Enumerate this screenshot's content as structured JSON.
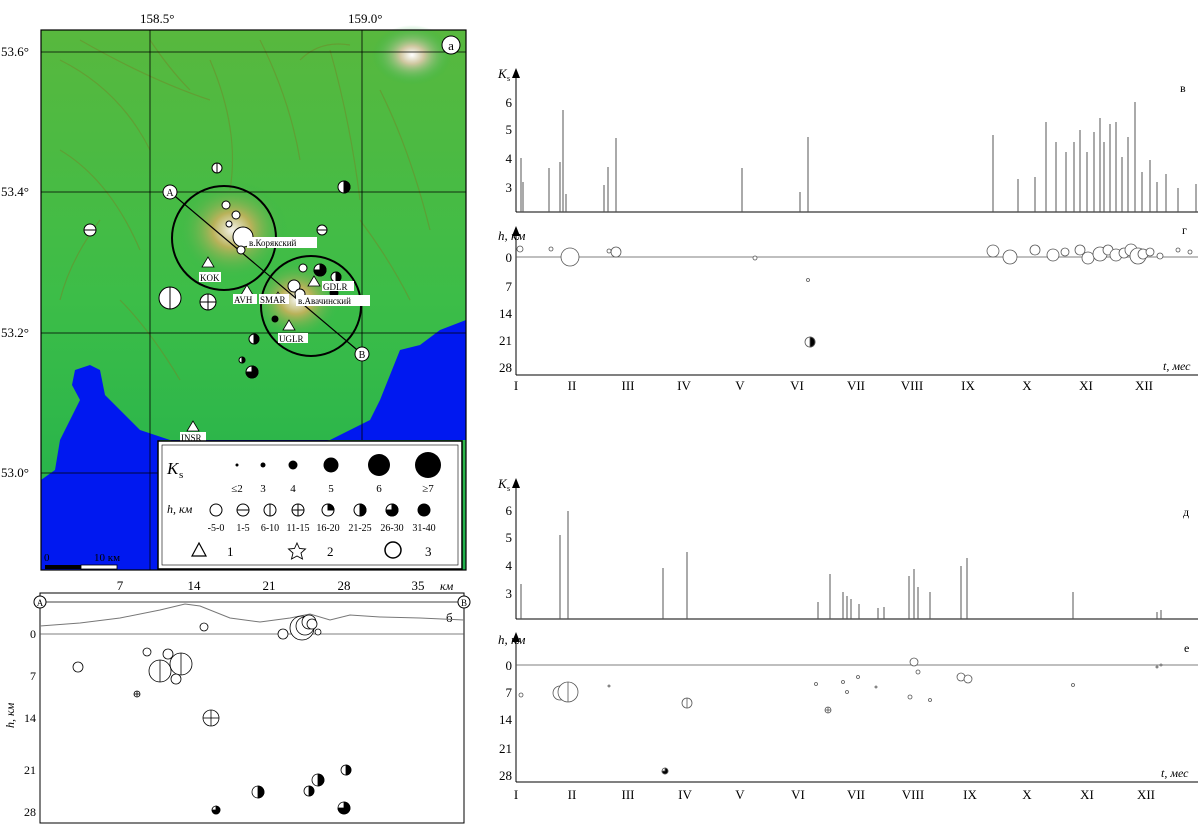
{
  "map": {
    "panel_label": "а",
    "lon_ticks": [
      "158.5°",
      "159.0°"
    ],
    "lat_ticks": [
      "53.6°",
      "53.4°",
      "53.2°",
      "53.0°"
    ],
    "volcanoes": [
      "в.Корякский",
      "в.Авачинский"
    ],
    "stations": [
      "KOK",
      "AVH",
      "SMAR",
      "GDLR",
      "UGLR",
      "INSR"
    ],
    "profile_ends": [
      "A",
      "B"
    ],
    "scale": {
      "zero": "0",
      "length_label": "10 км"
    },
    "colors": {
      "land_low": "#2db84a",
      "land_high": "#c9c24a",
      "sea": "#0018f0"
    }
  },
  "legend": {
    "ks_symbol": "K",
    "ks_sub": "s",
    "ks_classes": [
      "≤2",
      "3",
      "4",
      "5",
      "6",
      "≥7"
    ],
    "h_symbol": "h, км",
    "depth_classes": [
      "-5-0",
      "1-5",
      "6-10",
      "11-15",
      "16-20",
      "21-25",
      "26-30",
      "31-40"
    ],
    "symbols": [
      {
        "num": "1",
        "icon": "triangle"
      },
      {
        "num": "2",
        "icon": "star"
      },
      {
        "num": "3",
        "icon": "circle"
      }
    ]
  },
  "profile": {
    "panel_label": "б",
    "x_ticks": [
      "7",
      "14",
      "21",
      "28",
      "35"
    ],
    "x_unit": "км",
    "y_ticks": [
      "0",
      "7",
      "14",
      "21",
      "28"
    ],
    "y_label": "h, км",
    "ends": [
      "A",
      "B"
    ]
  },
  "charts": {
    "ks_axis": "K",
    "ks_sub": "s",
    "ks_ticks": [
      "3",
      "4",
      "5",
      "6"
    ],
    "h_axis": "h, км",
    "h_ticks": [
      "0",
      "7",
      "14",
      "21",
      "28"
    ],
    "t_axis": "t, мес",
    "months": [
      "I",
      "II",
      "III",
      "IV",
      "V",
      "VI",
      "VII",
      "VIII",
      "IX",
      "X",
      "XI",
      "XII"
    ],
    "panel_labels": [
      "в",
      "г",
      "д",
      "е"
    ]
  }
}
